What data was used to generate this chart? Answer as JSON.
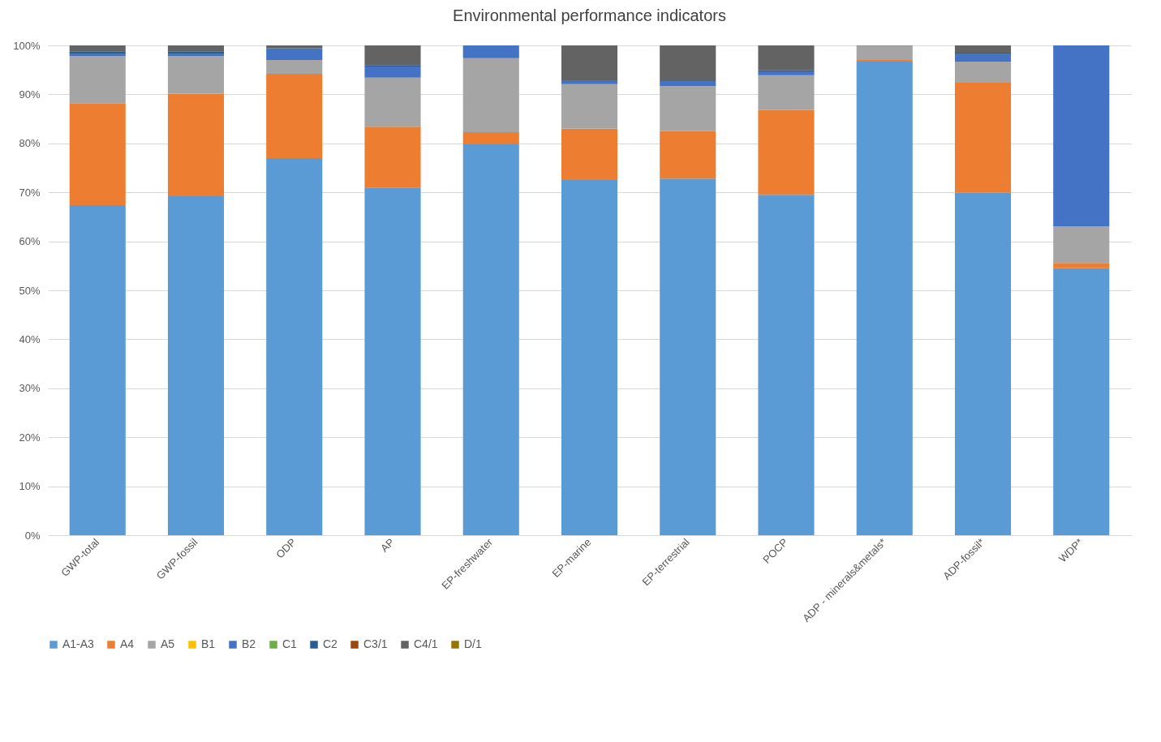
{
  "chart_data": {
    "type": "bar",
    "title": "Environmental performance indicators",
    "categories": [
      "GWP-total",
      "GWP-fossil",
      "ODP",
      "AP",
      "EP-freshwater",
      "EP-marine",
      "EP-terrestrial",
      "POCP",
      "ADP - minerals&metals*",
      "ADP-fossil*",
      "WDP*"
    ],
    "stacked": true,
    "series": [
      {
        "name": "A1-A3",
        "color": "#5b9bd5",
        "values": [
          67.4,
          69.2,
          77.0,
          71.0,
          79.8,
          72.5,
          72.8,
          69.5,
          96.7,
          69.9,
          54.5
        ]
      },
      {
        "name": "A4",
        "color": "#ed7d31",
        "values": [
          20.8,
          20.9,
          17.2,
          12.4,
          2.5,
          10.5,
          9.7,
          17.3,
          0.3,
          22.5,
          1.1
        ]
      },
      {
        "name": "A5",
        "color": "#a5a5a5",
        "values": [
          9.6,
          7.7,
          2.8,
          10.0,
          15.1,
          9.1,
          9.2,
          7.1,
          2.9,
          4.3,
          7.5
        ]
      },
      {
        "name": "B1",
        "color": "#ffc000",
        "values": [
          0,
          0,
          0,
          0,
          0,
          0,
          0,
          0,
          0,
          0,
          0
        ]
      },
      {
        "name": "B2",
        "color": "#4472c4",
        "values": [
          0.4,
          0.4,
          2.2,
          2.3,
          2.6,
          0.8,
          1.0,
          0.8,
          0,
          1.5,
          36.9
        ]
      },
      {
        "name": "C1",
        "color": "#70ad47",
        "values": [
          0,
          0,
          0,
          0,
          0,
          0,
          0,
          0,
          0,
          0,
          0
        ]
      },
      {
        "name": "C2",
        "color": "#255e91",
        "values": [
          0.6,
          0.6,
          0.2,
          0.3,
          0,
          0,
          0,
          0.2,
          0,
          0.3,
          0
        ]
      },
      {
        "name": "C3/1",
        "color": "#9e480e",
        "values": [
          0,
          0,
          0,
          0,
          0,
          0,
          0,
          0,
          0,
          0,
          0
        ]
      },
      {
        "name": "C4/1",
        "color": "#636363",
        "values": [
          1.2,
          1.2,
          0.6,
          4.0,
          0,
          7.1,
          7.3,
          5.1,
          0.1,
          1.5,
          0
        ]
      },
      {
        "name": "D/1",
        "color": "#997300",
        "values": [
          0,
          0,
          0,
          0,
          0,
          0,
          0,
          0,
          0,
          0,
          0
        ]
      }
    ],
    "ylim": [
      0,
      100
    ],
    "yticks": [
      {
        "value": 0,
        "label": "0%"
      },
      {
        "value": 10,
        "label": "10%"
      },
      {
        "value": 20,
        "label": "20%"
      },
      {
        "value": 30,
        "label": "30%"
      },
      {
        "value": 40,
        "label": "40%"
      },
      {
        "value": 50,
        "label": "50%"
      },
      {
        "value": 60,
        "label": "60%"
      },
      {
        "value": 70,
        "label": "70%"
      },
      {
        "value": 80,
        "label": "80%"
      },
      {
        "value": 90,
        "label": "90%"
      },
      {
        "value": 100,
        "label": "100%"
      }
    ],
    "grid": "y",
    "legend": "bottom"
  }
}
